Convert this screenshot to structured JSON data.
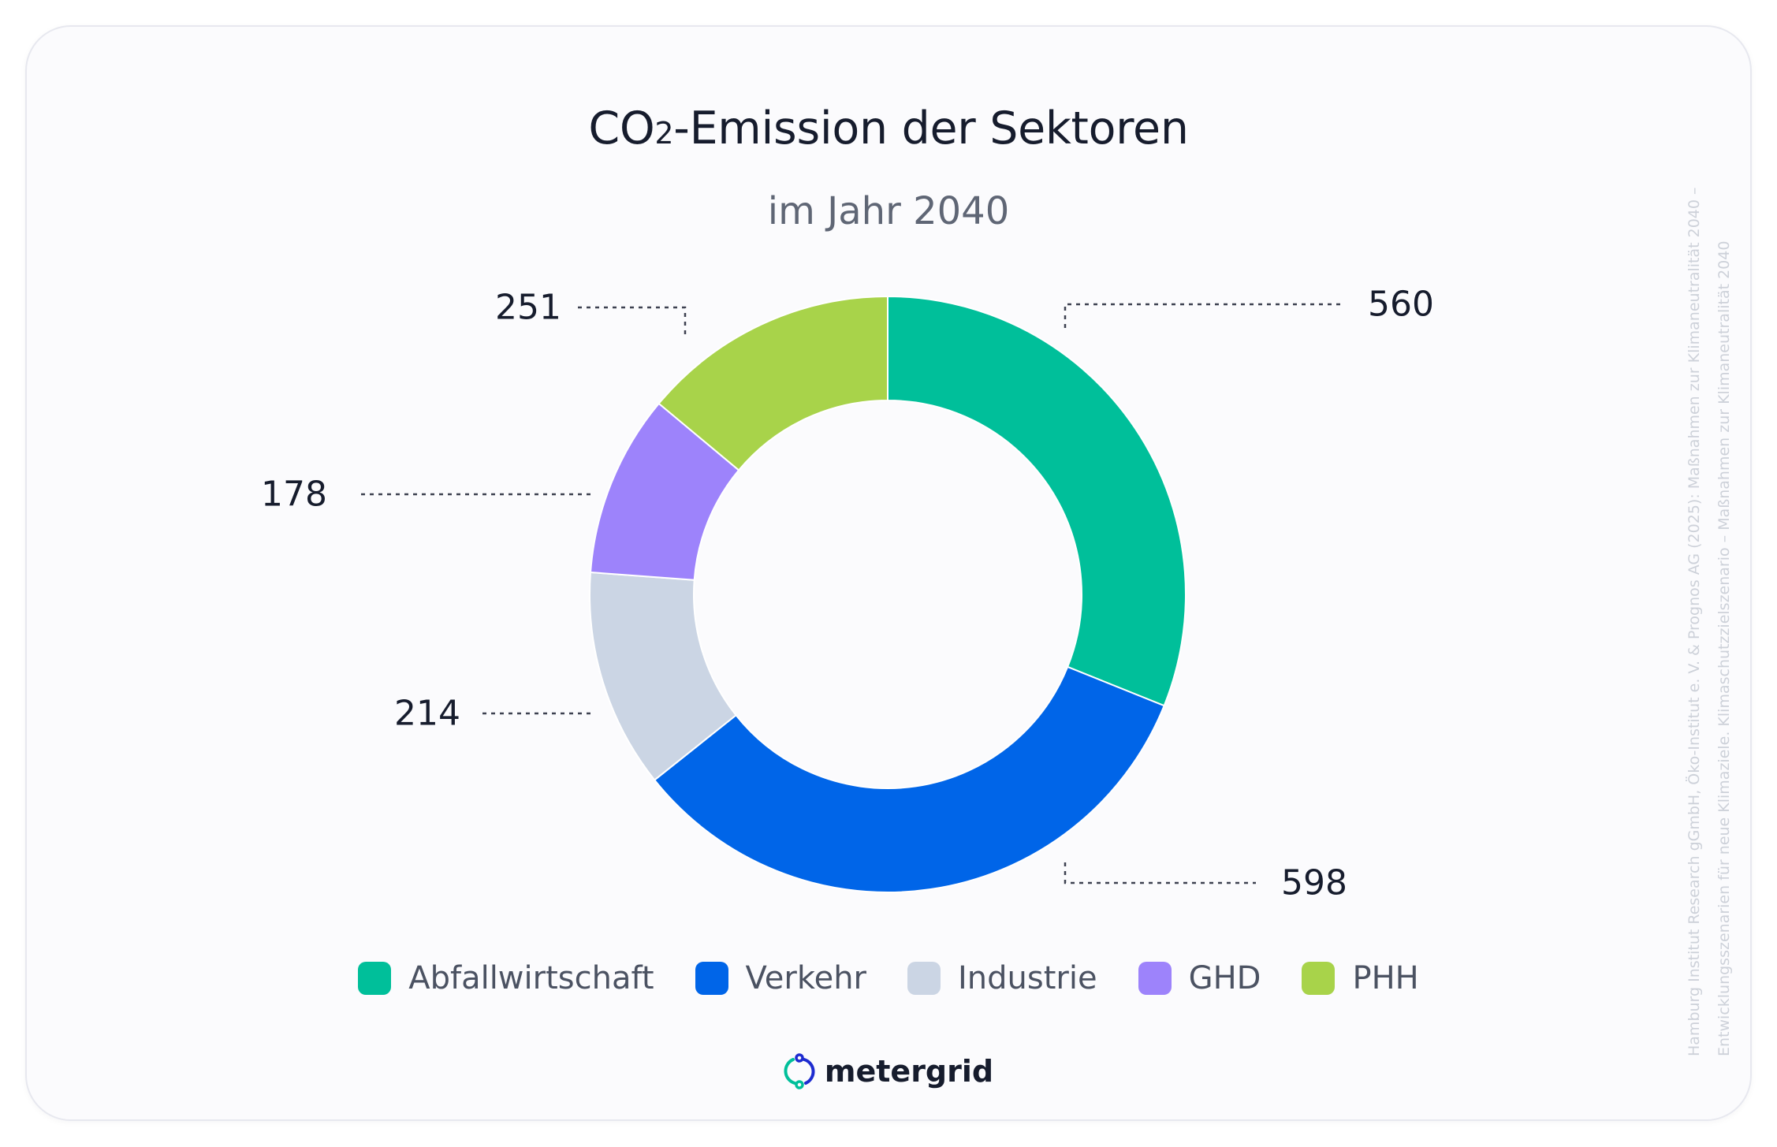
{
  "title_main": "CO",
  "title_sub": "2",
  "title_rest": "-Emission der Sektoren",
  "subtitle": "im Jahr 2040",
  "brand": "metergrid",
  "source_line1": "Hamburg Institut Research gGmbH, Öko-Institut e. V. & Prognos AG (2025): Maßnahmen zur Klimaneutralität 2040 –",
  "source_line2": "Entwicklungsszenarien für neue Klimaziele. Klimaschutzzielszenario – Maßnahmen zur Klimaneutralität 2040",
  "chart_data": {
    "type": "donut",
    "title": "CO₂-Emission der Sektoren",
    "subtitle": "im Jahr 2040",
    "categories": [
      "Abfallwirtschaft",
      "Verkehr",
      "Industrie",
      "GHD",
      "PHH"
    ],
    "values": [
      560,
      598,
      214,
      178,
      251
    ],
    "colors": [
      "#00bf9a",
      "#0065e8",
      "#cbd5e4",
      "#9d83fb",
      "#a8d34a"
    ],
    "legend_position": "bottom",
    "labels_shown": [
      "560",
      "598",
      "214",
      "178",
      "251"
    ]
  },
  "legend": [
    {
      "label": "Abfallwirtschaft",
      "color": "#00bf9a"
    },
    {
      "label": "Verkehr",
      "color": "#0065e8"
    },
    {
      "label": "Industrie",
      "color": "#cbd5e4"
    },
    {
      "label": "GHD",
      "color": "#9d83fb"
    },
    {
      "label": "PHH",
      "color": "#a8d34a"
    }
  ]
}
